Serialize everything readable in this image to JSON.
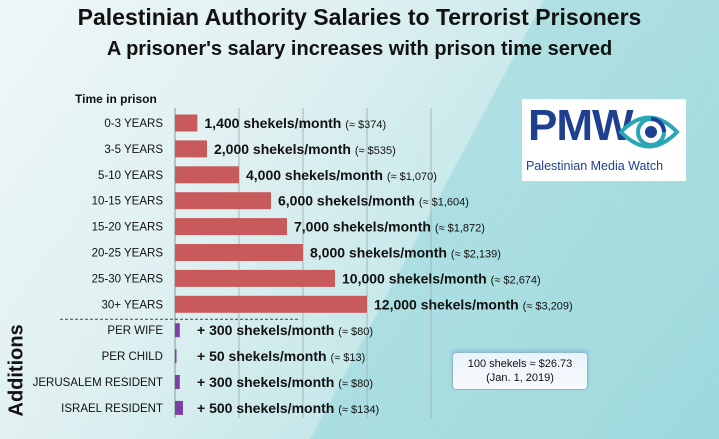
{
  "title": "Palestinian Authority Salaries to Terrorist Prisoners",
  "subtitle": "A prisoner's salary increases with prison time served",
  "logo": {
    "letters": "PMW",
    "name": "Palestinian Media Watch"
  },
  "note": {
    "line1": "100 shekels ≈ $26.73",
    "line2": "(Jan. 1, 2019)"
  },
  "colors": {
    "salary_bar": "#c85a5c",
    "addition_bar": "#7b3fa6"
  },
  "chart_data": {
    "type": "bar",
    "orientation": "horizontal",
    "axis_header": "Time in prison",
    "section_label": "Additions",
    "xlim": [
      0,
      16000
    ],
    "grid": true,
    "series": [
      {
        "name": "Salary",
        "categories": [
          "0-3 YEARS",
          "3-5 YEARS",
          "5-10 YEARS",
          "10-15 YEARS",
          "15-20 YEARS",
          "20-25 YEARS",
          "25-30 YEARS",
          "30+ YEARS"
        ],
        "values": [
          1400,
          2000,
          4000,
          6000,
          7000,
          8000,
          10000,
          12000
        ],
        "labels": [
          {
            "shekels": "1,400 shekels/month",
            "usd": "(≈ $374)"
          },
          {
            "shekels": "2,000 shekels/month",
            "usd": "(≈ $535)"
          },
          {
            "shekels": "4,000 shekels/month",
            "usd": "(≈ $1,070)"
          },
          {
            "shekels": "6,000 shekels/month",
            "usd": "(≈ $1,604)"
          },
          {
            "shekels": "7,000 shekels/month",
            "usd": "(≈ $1,872)"
          },
          {
            "shekels": "8,000 shekels/month",
            "usd": "(≈ $2,139)"
          },
          {
            "shekels": "10,000 shekels/month",
            "usd": "(≈ $2,674)"
          },
          {
            "shekels": "12,000 shekels/month",
            "usd": "(≈ $3,209)"
          }
        ]
      },
      {
        "name": "Additions",
        "categories": [
          "PER WIFE",
          "PER CHILD",
          "JERUSALEM RESIDENT",
          "ISRAEL RESIDENT"
        ],
        "values": [
          300,
          50,
          300,
          500
        ],
        "labels": [
          {
            "shekels": "+ 300 shekels/month",
            "usd": "(≈ $80)"
          },
          {
            "shekels": "+ 50 shekels/month",
            "usd": "(≈ $13)"
          },
          {
            "shekels": "+ 300 shekels/month",
            "usd": "(≈ $80)"
          },
          {
            "shekels": "+ 500 shekels/month",
            "usd": "(≈ $134)"
          }
        ]
      }
    ]
  }
}
